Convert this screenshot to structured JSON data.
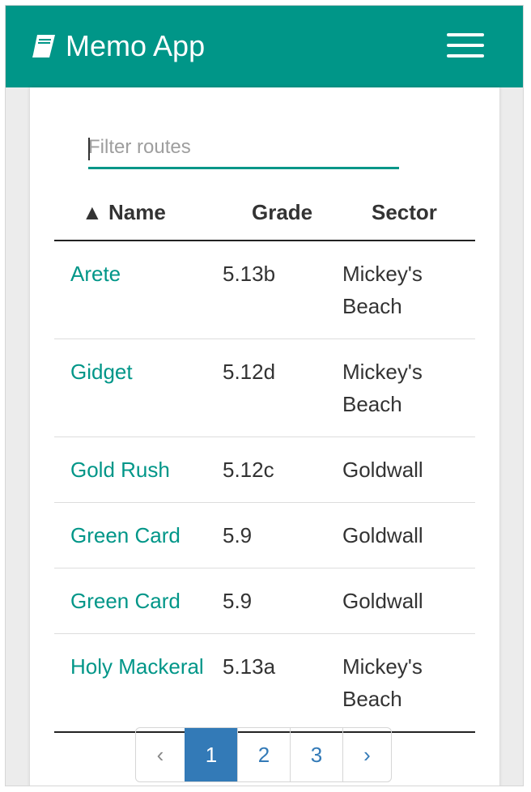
{
  "app": {
    "title": "Memo App",
    "brand_color": "#009688"
  },
  "filter": {
    "placeholder": "Filter routes",
    "value": ""
  },
  "table": {
    "sort_indicator": "▲",
    "columns": {
      "name": "Name",
      "grade": "Grade",
      "sector": "Sector"
    },
    "rows": [
      {
        "name": "Arete",
        "grade": "5.13b",
        "sector": "Mickey's Beach"
      },
      {
        "name": "Gidget",
        "grade": "5.12d",
        "sector": "Mickey's Beach"
      },
      {
        "name": "Gold Rush",
        "grade": "5.12c",
        "sector": "Goldwall"
      },
      {
        "name": "Green Card",
        "grade": "5.9",
        "sector": "Goldwall"
      },
      {
        "name": "Green Card",
        "grade": "5.9",
        "sector": "Goldwall"
      },
      {
        "name": "Holy Mackeral",
        "grade": "5.13a",
        "sector": "Mickey's Beach"
      }
    ]
  },
  "pagination": {
    "prev": "‹",
    "next": "›",
    "pages": [
      "1",
      "2",
      "3"
    ],
    "active": "1"
  },
  "icons": {
    "brand": "book-icon",
    "menu": "hamburger-menu-icon"
  }
}
